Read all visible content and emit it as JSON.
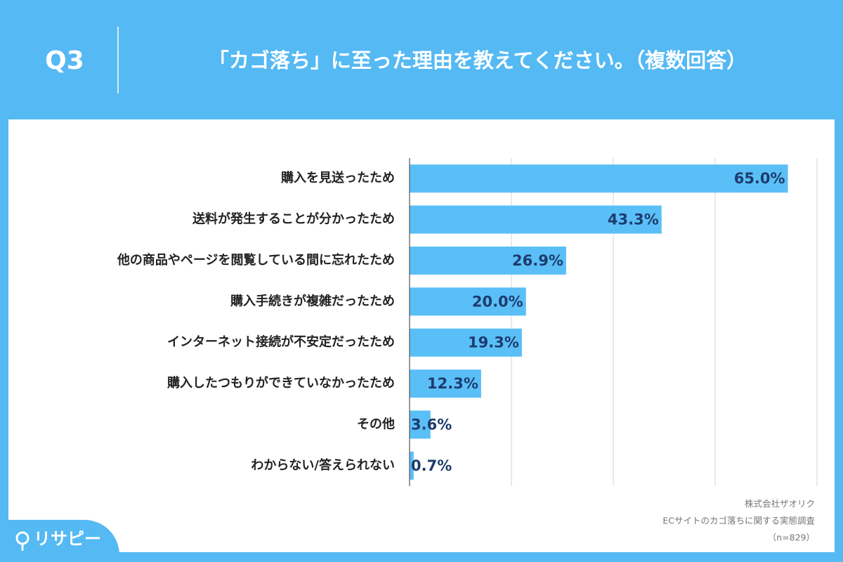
{
  "header": {
    "question": "Q3",
    "title": "「カゴ落ち」に至った理由を教えてください。（複数回答）"
  },
  "chart_data": {
    "type": "hbar",
    "categories": [
      "購入を見送ったため",
      "送料が発生することが分かったため",
      "他の商品やページを閲覧している間に忘れたため",
      "購入手続きが複雑だったため",
      "インターネット接続が不安定だったため",
      "購入したつもりができていなかったため",
      "その他",
      "わからない/答えられない"
    ],
    "values": [
      65.0,
      43.3,
      26.9,
      20.0,
      19.3,
      12.3,
      3.6,
      0.7
    ],
    "value_labels": [
      "65.0%",
      "43.3%",
      "26.9%",
      "20.0%",
      "19.3%",
      "12.3%",
      "3.6%",
      "0.7%"
    ],
    "color": "#5bbff7",
    "xlim": [
      0,
      70
    ],
    "xticks": [
      0,
      17.5,
      35,
      52.5,
      70
    ],
    "grid": true
  },
  "source": [
    "株式会社ザオリク",
    "ECサイトのカゴ落ちに関する実態調査",
    "（n=829）"
  ],
  "logo": "リサピー"
}
